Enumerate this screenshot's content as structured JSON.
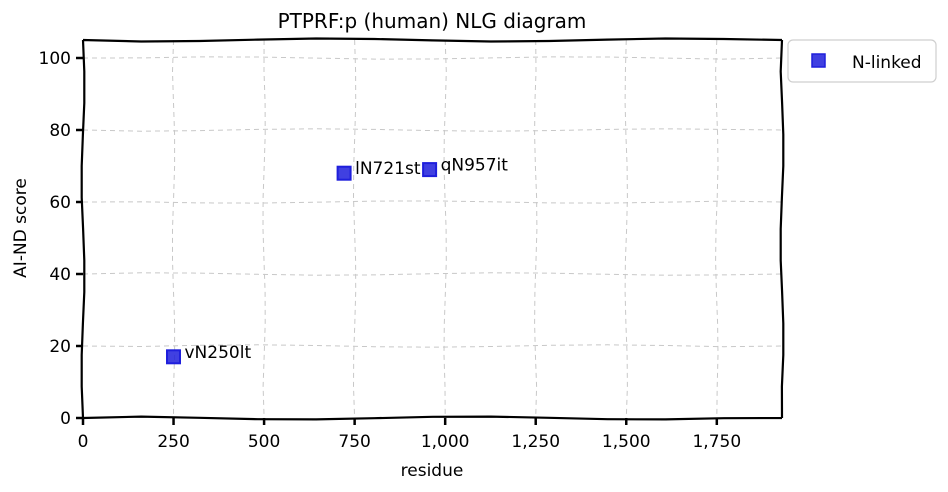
{
  "chart_data": {
    "type": "scatter",
    "title": "PTPRF:p (human) NLG diagram",
    "xlabel": "residue",
    "ylabel": "AI-ND score",
    "xlim": [
      0,
      1930
    ],
    "ylim": [
      0,
      105
    ],
    "xticks": [
      0,
      250,
      500,
      750,
      1000,
      1250,
      1500,
      1750
    ],
    "xtick_labels": [
      "0",
      "250",
      "500",
      "750",
      "1,000",
      "1,250",
      "1,500",
      "1,750"
    ],
    "yticks": [
      0,
      20,
      40,
      60,
      80,
      100
    ],
    "ytick_labels": [
      "0",
      "20",
      "40",
      "60",
      "80",
      "100"
    ],
    "grid": true,
    "legend_position": "outside-top-right",
    "series": [
      {
        "name": "N-linked",
        "color": "#1f1fdc",
        "marker": "square",
        "points": [
          {
            "x": 250,
            "y": 17,
            "label": "vN250lt"
          },
          {
            "x": 721,
            "y": 68,
            "label": "lN721st"
          },
          {
            "x": 957,
            "y": 69,
            "label": "qN957it"
          }
        ]
      }
    ]
  }
}
